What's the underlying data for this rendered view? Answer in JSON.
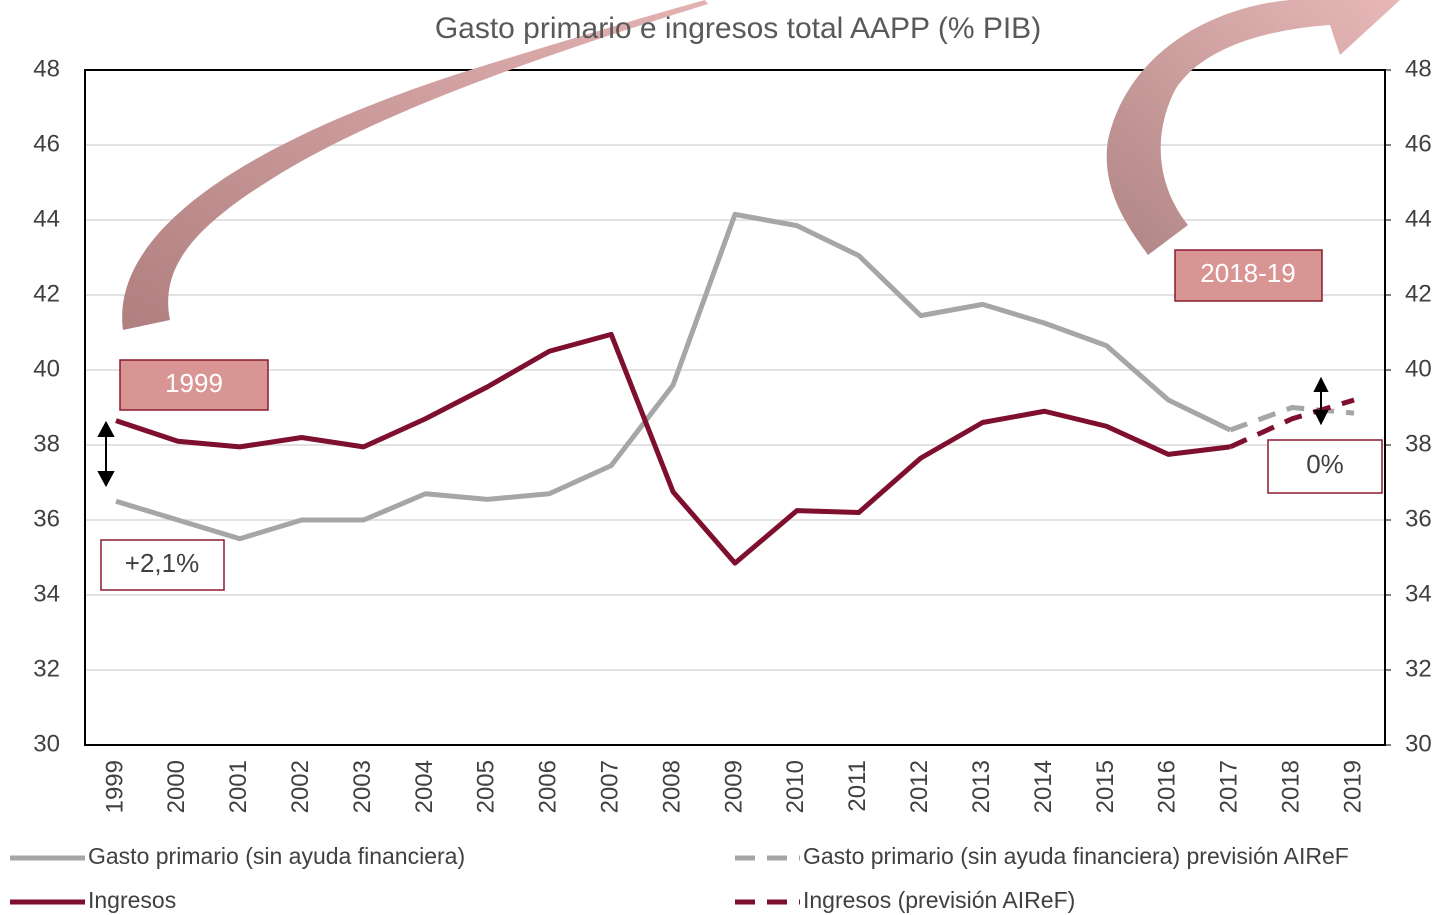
{
  "chart_data": {
    "type": "line",
    "title": "Gasto primario e ingresos total AAPP (% PIB)",
    "categories": [
      "1999",
      "2000",
      "2001",
      "2002",
      "2003",
      "2004",
      "2005",
      "2006",
      "2007",
      "2008",
      "2009",
      "2010",
      "2011",
      "2012",
      "2013",
      "2014",
      "2015",
      "2016",
      "2017",
      "2018",
      "2019"
    ],
    "series": [
      {
        "name": "Gasto primario (sin ayuda financiera)",
        "color": "#a6a6a6",
        "style": "solid",
        "values": [
          36.5,
          36.0,
          35.5,
          36.0,
          36.0,
          36.7,
          36.55,
          36.7,
          37.45,
          39.6,
          44.15,
          43.85,
          43.05,
          41.45,
          41.75,
          41.25,
          40.65,
          39.2,
          38.4,
          null,
          null
        ]
      },
      {
        "name": "Gasto primario (sin ayuda financiera) previsión AIReF",
        "color": "#a6a6a6",
        "style": "dashed",
        "values": [
          null,
          null,
          null,
          null,
          null,
          null,
          null,
          null,
          null,
          null,
          null,
          null,
          null,
          null,
          null,
          null,
          null,
          null,
          38.4,
          39.0,
          38.85
        ]
      },
      {
        "name": "Ingresos",
        "color": "#7f0f2e",
        "style": "solid",
        "values": [
          38.65,
          38.1,
          37.95,
          38.2,
          37.95,
          38.7,
          39.55,
          40.5,
          40.95,
          36.75,
          34.85,
          36.25,
          36.2,
          37.65,
          38.6,
          38.9,
          38.5,
          37.75,
          37.95,
          null,
          null
        ]
      },
      {
        "name": "Ingresos (previsión AIReF)",
        "color": "#7f0f2e",
        "style": "dashed",
        "values": [
          null,
          null,
          null,
          null,
          null,
          null,
          null,
          null,
          null,
          null,
          null,
          null,
          null,
          null,
          null,
          null,
          null,
          null,
          37.95,
          38.7,
          39.2
        ]
      }
    ],
    "ylim": [
      30,
      48
    ],
    "yticks": [
      30,
      32,
      34,
      36,
      38,
      40,
      42,
      44,
      46,
      48
    ],
    "y2lim": [
      30,
      48
    ],
    "y2ticks": [
      30,
      32,
      34,
      36,
      38,
      40,
      42,
      44,
      46,
      48
    ],
    "grid": true,
    "annotations": [
      "1999",
      "2018-19",
      "+2,1%",
      "0%"
    ]
  }
}
